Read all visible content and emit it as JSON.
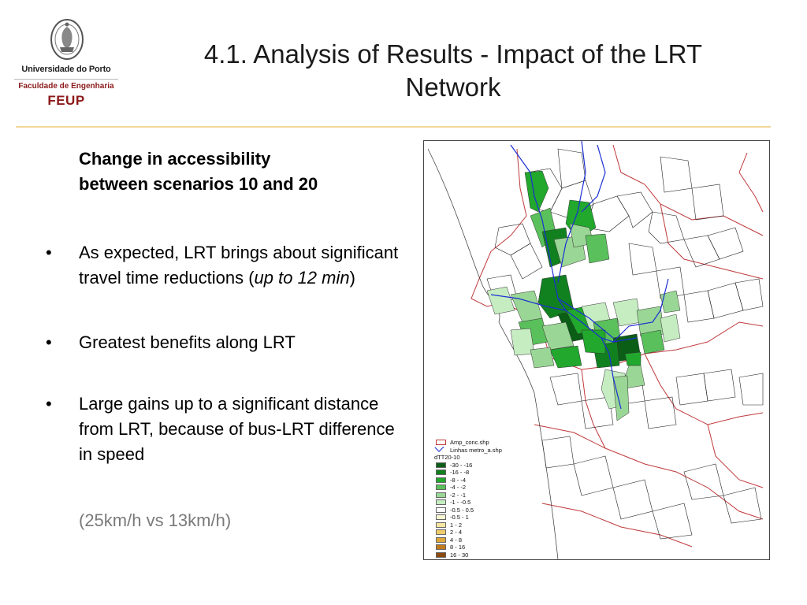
{
  "logo": {
    "university": "Universidade do Porto",
    "faculty": "Faculdade de Engenharia",
    "acronym": "FEUP",
    "brand_color": "#8c1a1a"
  },
  "slide": {
    "title_line1": "4.1. Analysis of Results - Impact of the LRT",
    "title_line2": "Network",
    "subtitle_line1": "Change in accessibility",
    "subtitle_line2": "between scenarios 10 and 20",
    "bullet_char": "•",
    "bullets": {
      "b1_text": "As expected, LRT brings about significant travel time reductions (",
      "b1_italic": "up to 12 min",
      "b1_end": ")",
      "b2_text": "Greatest benefits along LRT",
      "b3_text": "Large gains up to a significant distance from LRT, because of bus-LRT difference in speed"
    },
    "note": "(25km/h vs 13km/h)"
  },
  "map": {
    "legend": {
      "layer1": "Amp_conc.shp",
      "layer2": "Linhas metro_a.shp",
      "field": "dTT20-10",
      "classes": [
        {
          "label": "-30 - -16",
          "color": "#0b5e16"
        },
        {
          "label": "-16 - -8",
          "color": "#11801f"
        },
        {
          "label": "-8 - -4",
          "color": "#21a82d"
        },
        {
          "label": "-4 - -2",
          "color": "#5ac05b"
        },
        {
          "label": "-2 - -1",
          "color": "#9ad695"
        },
        {
          "label": "-1 - -0.5",
          "color": "#c6ecc2"
        },
        {
          "label": "-0.5 - 0.5",
          "color": "#ffffff"
        },
        {
          "label": "-0.5 - 1",
          "color": "#fbf8d4"
        },
        {
          "label": "1 - 2",
          "color": "#f5e6a2"
        },
        {
          "label": "2 - 4",
          "color": "#eecb6b"
        },
        {
          "label": "4 - 8",
          "color": "#dfa83a"
        },
        {
          "label": "8 - 16",
          "color": "#c07a1c"
        },
        {
          "label": "16 - 30",
          "color": "#8a4a0c"
        }
      ]
    }
  }
}
